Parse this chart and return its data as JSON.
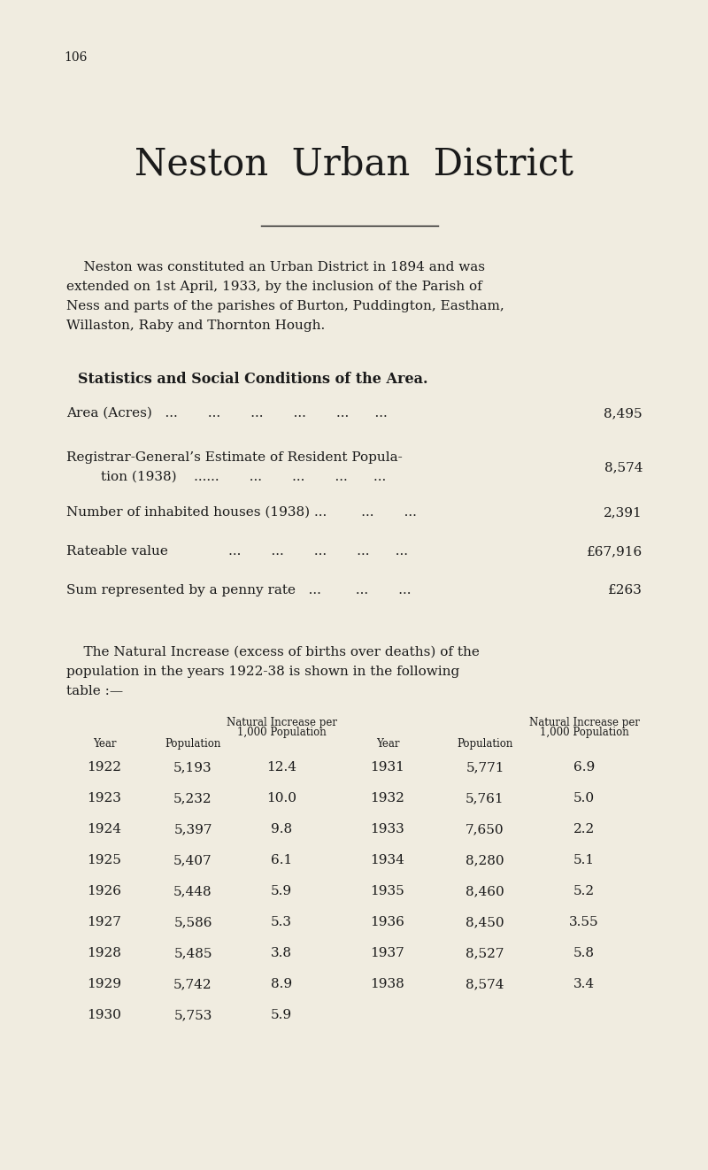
{
  "bg_color": "#f0ece0",
  "text_color": "#1a1a1a",
  "page_number": "106",
  "title": "Neston  Urban  District",
  "intro_line1": "    Neston was constituted an Urban District in 1894 and was",
  "intro_line2": "extended on 1st April, 1933, by the inclusion of the Parish of",
  "intro_line3": "Ness and parts of the parishes of Burton, Puddington, Eastham,",
  "intro_line4": "Willaston, Raby and Thornton Hough.",
  "stats_heading": "Statistics and Social Conditions of the Area.",
  "stat_labels": [
    "Area (Acres)   ...       ...       ...       ...       ...      ...",
    "Registrar-General’s Estimate of Resident Popula-",
    "        tion (1938)    ......       ...       ...       ...      ...",
    "Number of inhabited houses (1938) ...        ...       ...",
    "Rateable value              ...       ...       ...       ...      ...",
    "Sum represented by a penny rate   ...        ...       ..."
  ],
  "stat_values": [
    "8,495",
    "",
    "8,574",
    "2,391",
    "£67,916",
    "£263"
  ],
  "natural_line1": "    The Natural Increase (excess of births over deaths) of the",
  "natural_line2": "population in the years 1922-38 is shown in the following",
  "natural_line3": "table :—",
  "table_left": [
    [
      "1922",
      "5,193",
      "12.4"
    ],
    [
      "1923",
      "5,232",
      "10.0"
    ],
    [
      "1924",
      "5,397",
      "9.8"
    ],
    [
      "1925",
      "5,407",
      "6.1"
    ],
    [
      "1926",
      "5,448",
      "5.9"
    ],
    [
      "1927",
      "5,586",
      "5.3"
    ],
    [
      "1928",
      "5,485",
      "3.8"
    ],
    [
      "1929",
      "5,742",
      "8.9"
    ],
    [
      "1930",
      "5,753",
      "5.9"
    ]
  ],
  "table_right": [
    [
      "1931",
      "5,771",
      "6.9"
    ],
    [
      "1932",
      "5,761",
      "5.0"
    ],
    [
      "1933",
      "7,650",
      "2.2"
    ],
    [
      "1934",
      "8,280",
      "5.1"
    ],
    [
      "1935",
      "8,460",
      "5.2"
    ],
    [
      "1936",
      "8,450",
      "3.55"
    ],
    [
      "1937",
      "8,527",
      "5.8"
    ],
    [
      "1938",
      "8,574",
      "3.4"
    ]
  ]
}
